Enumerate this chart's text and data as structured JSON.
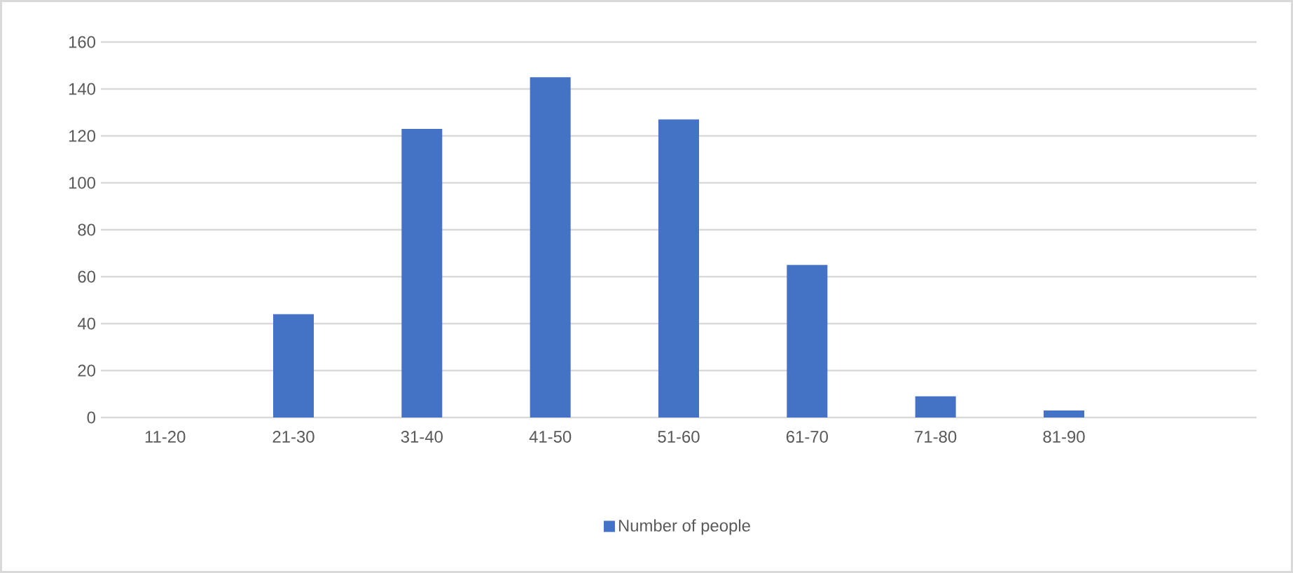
{
  "chart_data": {
    "type": "bar",
    "categories": [
      "11-20",
      "21-30",
      "31-40",
      "41-50",
      "51-60",
      "61-70",
      "71-80",
      "81-90",
      null
    ],
    "series": [
      {
        "name": "Number of people",
        "color": "#4472c4",
        "values": [
          0,
          44,
          123,
          145,
          127,
          65,
          9,
          3,
          0
        ]
      }
    ],
    "ylim": [
      0,
      160
    ],
    "yticks": [
      0,
      20,
      40,
      60,
      80,
      100,
      120,
      140,
      160
    ],
    "grid": "y",
    "legend": "bottom"
  }
}
